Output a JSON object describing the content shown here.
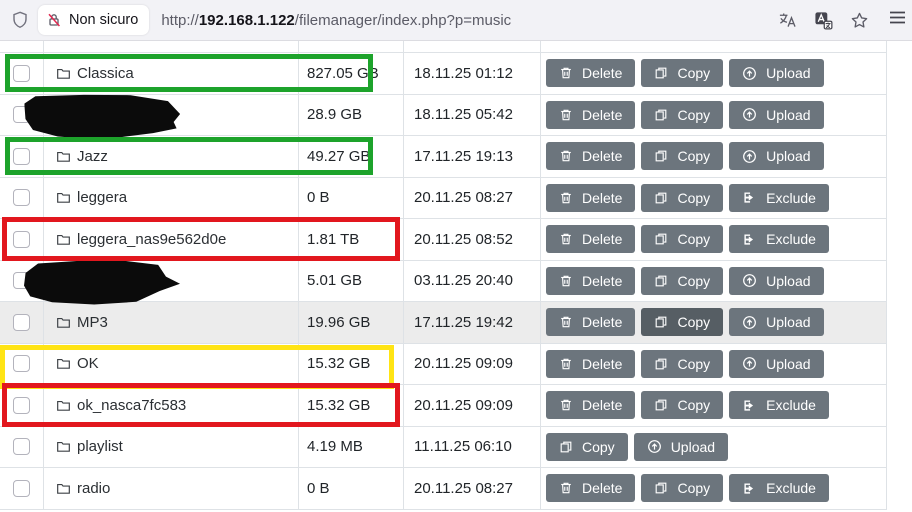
{
  "browser": {
    "security_badge": "Non sicuro",
    "url": {
      "scheme": "http://",
      "host": "192.168.1.122",
      "path": "/filemanager/index.php?p=music"
    }
  },
  "actions_catalog": {
    "delete": {
      "label": "Delete",
      "icon": "trash-icon"
    },
    "copy": {
      "label": "Copy",
      "icon": "copy-icon"
    },
    "upload": {
      "label": "Upload",
      "icon": "upload-icon"
    },
    "exclude": {
      "label": "Exclude",
      "icon": "exclude-icon"
    }
  },
  "rows": [
    {
      "name": "Classica",
      "redacted": false,
      "size": "827.05 GB",
      "date": "18.11.25 01:12",
      "actions": [
        "delete",
        "copy",
        "upload"
      ],
      "highlight": "green",
      "row_hover": false,
      "pressed_action": null
    },
    {
      "name": "",
      "redacted": true,
      "size": "28.9 GB",
      "date": "18.11.25 05:42",
      "actions": [
        "delete",
        "copy",
        "upload"
      ],
      "highlight": null,
      "row_hover": false,
      "pressed_action": null
    },
    {
      "name": "Jazz",
      "redacted": false,
      "size": "49.27 GB",
      "date": "17.11.25 19:13",
      "actions": [
        "delete",
        "copy",
        "upload"
      ],
      "highlight": "green",
      "row_hover": false,
      "pressed_action": null
    },
    {
      "name": "leggera",
      "redacted": false,
      "size": "0 B",
      "date": "20.11.25 08:27",
      "actions": [
        "delete",
        "copy",
        "exclude"
      ],
      "highlight": null,
      "row_hover": false,
      "pressed_action": null
    },
    {
      "name": "leggera_nas9e562d0e",
      "redacted": false,
      "size": "1.81 TB",
      "date": "20.11.25 08:52",
      "actions": [
        "delete",
        "copy",
        "exclude"
      ],
      "highlight": "red",
      "row_hover": false,
      "pressed_action": null
    },
    {
      "name": "",
      "redacted": true,
      "size": "5.01 GB",
      "date": "03.11.25 20:40",
      "actions": [
        "delete",
        "copy",
        "upload"
      ],
      "highlight": null,
      "row_hover": false,
      "pressed_action": null
    },
    {
      "name": "MP3",
      "redacted": false,
      "size": "19.96 GB",
      "date": "17.11.25 19:42",
      "actions": [
        "delete",
        "copy",
        "upload"
      ],
      "highlight": null,
      "row_hover": true,
      "pressed_action": "copy"
    },
    {
      "name": "OK",
      "redacted": false,
      "size": "15.32 GB",
      "date": "20.11.25 09:09",
      "actions": [
        "delete",
        "copy",
        "upload"
      ],
      "highlight": "yellow",
      "row_hover": false,
      "pressed_action": null
    },
    {
      "name": "ok_nasca7fc583",
      "redacted": false,
      "size": "15.32 GB",
      "date": "20.11.25 09:09",
      "actions": [
        "delete",
        "copy",
        "exclude"
      ],
      "highlight": "red",
      "row_hover": false,
      "pressed_action": null
    },
    {
      "name": "playlist",
      "redacted": false,
      "size": "4.19 MB",
      "date": "11.11.25 06:10",
      "actions": [
        "copy",
        "upload"
      ],
      "highlight": null,
      "row_hover": false,
      "pressed_action": null
    },
    {
      "name": "radio",
      "redacted": false,
      "size": "0 B",
      "date": "20.11.25 08:27",
      "actions": [
        "delete",
        "copy",
        "exclude"
      ],
      "highlight": null,
      "row_hover": false,
      "pressed_action": null
    }
  ],
  "colors": {
    "button": "#6c757d",
    "button_hover": "#565e64",
    "row_hover_bg": "#ececec",
    "highlight_green": "#1da32b",
    "highlight_red": "#e2171e",
    "highlight_yellow": "#ffe414",
    "table_border": "#dee2e6"
  }
}
